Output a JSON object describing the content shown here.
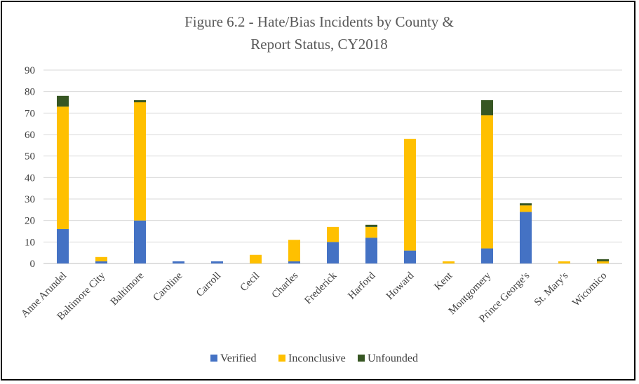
{
  "chart_data": {
    "type": "bar",
    "stacked": true,
    "title": "Figure 6.2 - Hate/Bias Incidents by County & Report Status, CY2018",
    "title_lines": [
      "Figure 6.2 - Hate/Bias Incidents by County &",
      "Report Status, CY2018"
    ],
    "xlabel": "",
    "ylabel": "",
    "ylim": [
      0,
      90
    ],
    "yticks": [
      0,
      10,
      20,
      30,
      40,
      50,
      60,
      70,
      80,
      90
    ],
    "grid": true,
    "legend": "bottom",
    "categories": [
      "Anne Arundel",
      "Baltimore City",
      "Baltimore",
      "Caroline",
      "Carroll",
      "Cecil",
      "Charles",
      "Frederick",
      "Harford",
      "Howard",
      "Kent",
      "Montgomery",
      "Prince George's",
      "St. Mary's",
      "Wicomico"
    ],
    "series": [
      {
        "name": "Verified",
        "color": "#4472C4",
        "values": [
          16,
          1,
          20,
          1,
          1,
          0,
          1,
          10,
          12,
          6,
          0,
          7,
          24,
          0,
          0
        ]
      },
      {
        "name": "Inconclusive",
        "color": "#FFC000",
        "values": [
          57,
          2,
          55,
          0,
          0,
          4,
          10,
          7,
          5,
          52,
          1,
          62,
          3,
          1,
          1
        ]
      },
      {
        "name": "Unfounded",
        "color": "#375623",
        "values": [
          5,
          0,
          1,
          0,
          0,
          0,
          0,
          0,
          1,
          0,
          0,
          7,
          1,
          0,
          1
        ]
      }
    ]
  }
}
